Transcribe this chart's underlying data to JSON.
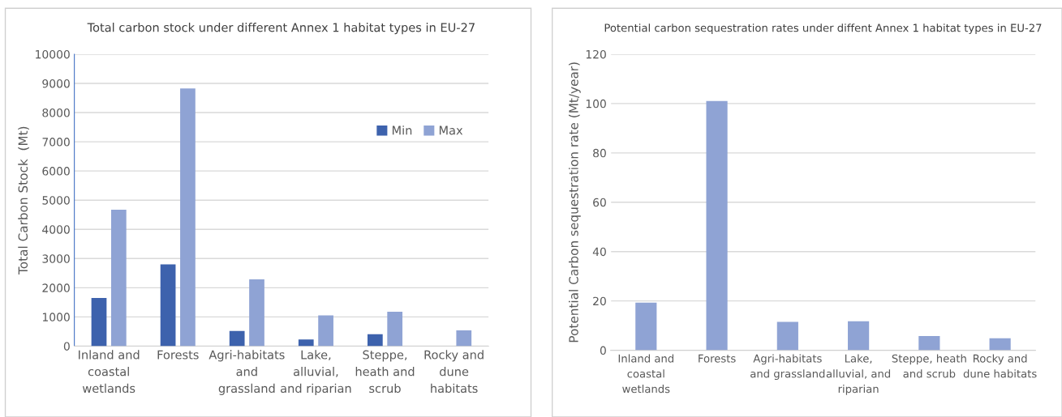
{
  "chart_data": [
    {
      "type": "bar",
      "title": "Total carbon stock under different Annex 1 habitat types in EU-27",
      "ylabel": "Total Carbon Stock  (Mt)",
      "categories": [
        "Inland and coastal wetlands",
        "Forests",
        "Agri-habitats and grassland",
        "Lake, alluvial, and riparian",
        "Steppe, heath and scrub",
        "Rocky and dune habitats"
      ],
      "series": [
        {
          "name": "Min",
          "color": "#3d62ad",
          "values": [
            1650,
            2800,
            520,
            230,
            410,
            null
          ]
        },
        {
          "name": "Max",
          "color": "#8fa3d4",
          "values": [
            4670,
            8830,
            2290,
            1050,
            1180,
            540
          ]
        }
      ],
      "ylim": [
        0,
        10000
      ],
      "yticks": [
        0,
        1000,
        2000,
        3000,
        4000,
        5000,
        6000,
        7000,
        8000,
        9000,
        10000
      ],
      "grid": "y",
      "legend": "top right"
    },
    {
      "type": "bar",
      "title": "Potential carbon sequestration rates under diffent Annex 1 habitat types in EU-27",
      "ylabel": "Potential Carbon sequestration rate (Mt/year)",
      "categories": [
        "Inland and coastal wetlands",
        "Forests",
        "Agri-habitats and grassland",
        "Lake, alluvial, and riparian",
        "Steppe, heath and scrub",
        "Rocky and dune habitats"
      ],
      "series": [
        {
          "color": "#8fa3d4",
          "values": [
            19.3,
            101,
            11.5,
            11.8,
            5.8,
            4.9
          ]
        }
      ],
      "ylim": [
        0,
        120
      ],
      "yticks": [
        0,
        20,
        40,
        60,
        80,
        100,
        120
      ],
      "grid": "y"
    }
  ]
}
